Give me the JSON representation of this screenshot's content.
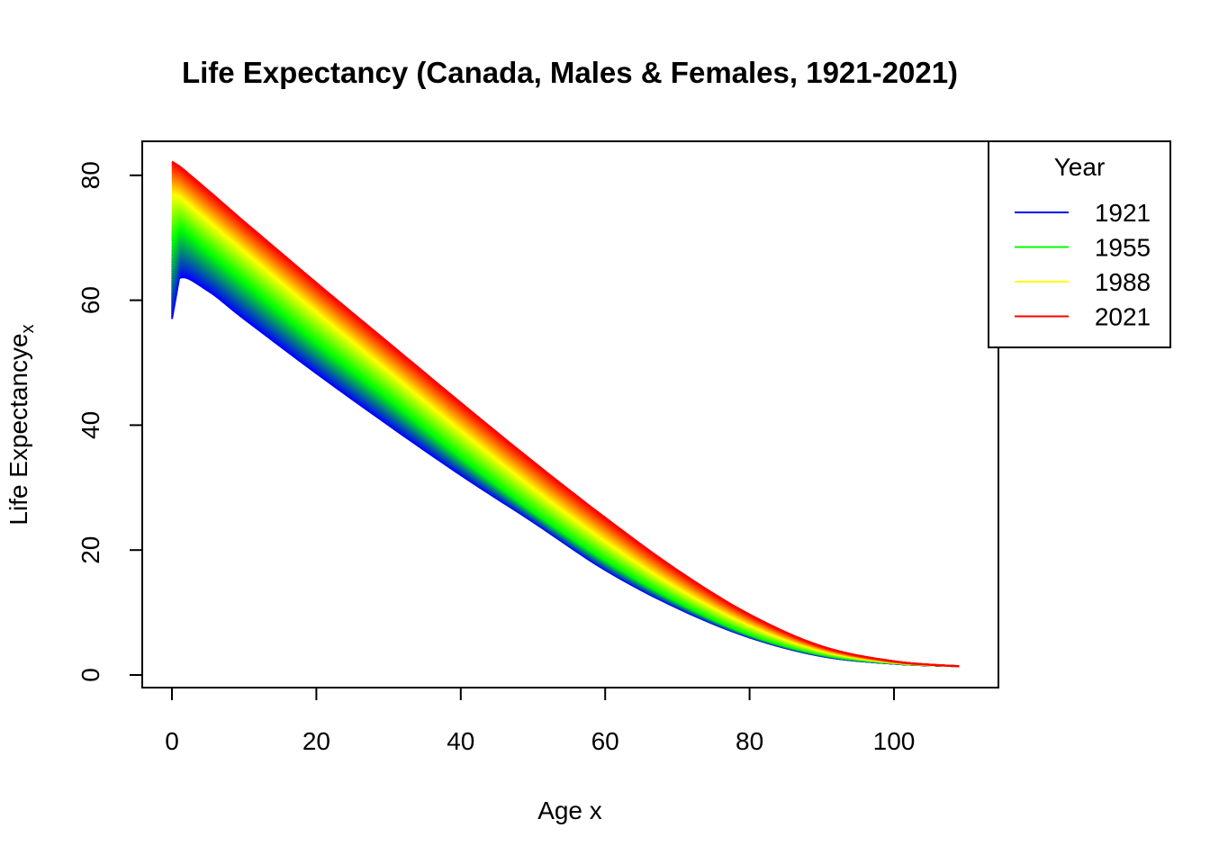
{
  "chart_data": {
    "type": "line",
    "title": "Life Expectancy (Canada, Males & Females, 1921-2021)",
    "xlabel": "Age x",
    "ylabel_main": "Life Expectancy",
    "ylabel_symbol": "e",
    "ylabel_subscript": "x",
    "xlim": [
      0,
      110
    ],
    "ylim": [
      0,
      82
    ],
    "x_ticks": [
      "0",
      "20",
      "40",
      "60",
      "80",
      "100"
    ],
    "y_ticks": [
      "0",
      "20",
      "40",
      "60",
      "80"
    ],
    "legend": {
      "title": "Year",
      "position": "top-right",
      "items": [
        {
          "label": "1921",
          "color": "#0000ff"
        },
        {
          "label": "1955",
          "color": "#00ff00"
        },
        {
          "label": "1988",
          "color": "#ffff00"
        },
        {
          "label": "2021",
          "color": "#ff0000"
        }
      ]
    },
    "years": {
      "start": 1921,
      "end": 2021
    },
    "x": [
      0,
      1,
      5,
      10,
      20,
      30,
      40,
      50,
      60,
      70,
      80,
      90,
      100,
      109
    ],
    "series": [
      {
        "name": "1921",
        "color": "#0000ff",
        "values": [
          57,
          63.5,
          61.5,
          57.0,
          48.3,
          40.0,
          32.0,
          24.5,
          16.8,
          10.7,
          6.0,
          3.0,
          1.8,
          1.4
        ]
      },
      {
        "name": "1955",
        "color": "#00ff00",
        "values": [
          69.5,
          71.5,
          67.8,
          63.0,
          53.3,
          44.3,
          35.0,
          26.3,
          18.5,
          11.8,
          6.5,
          3.3,
          1.9,
          1.4
        ]
      },
      {
        "name": "1988",
        "color": "#ffff00",
        "values": [
          77.0,
          76.7,
          72.8,
          67.9,
          58.2,
          48.7,
          39.2,
          30.0,
          21.5,
          14.0,
          8.0,
          3.9,
          2.0,
          1.4
        ]
      },
      {
        "name": "2021",
        "color": "#ff0000",
        "values": [
          82.2,
          81.5,
          77.6,
          72.6,
          62.8,
          53.2,
          43.6,
          34.2,
          25.2,
          16.8,
          9.7,
          4.6,
          2.2,
          1.4
        ]
      }
    ]
  }
}
